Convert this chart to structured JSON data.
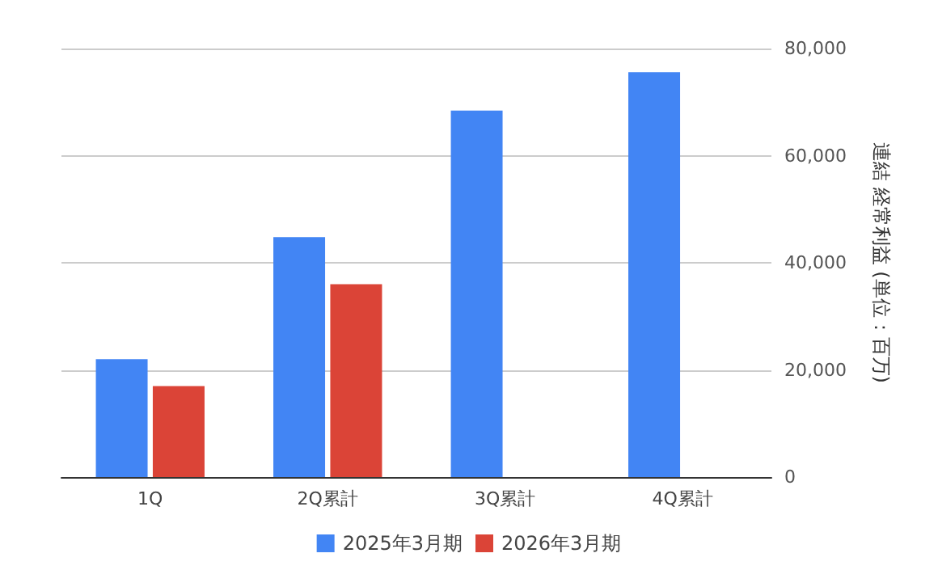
{
  "chart_data": {
    "type": "bar",
    "categories": [
      "1Q",
      "2Q累計",
      "3Q累計",
      "4Q累計"
    ],
    "series": [
      {
        "name": "2025年3月期",
        "color": "#4285f4",
        "values": [
          22000,
          44800,
          68400,
          75600
        ]
      },
      {
        "name": "2026年3月期",
        "color": "#db4437",
        "values": [
          17000,
          36000,
          null,
          null
        ]
      }
    ],
    "ylabel": "連結 経常利益 (単位：百万)",
    "ylim": [
      0,
      80000
    ],
    "yticks": [
      0,
      {
        "value": 20000,
        "label": "20,000"
      },
      {
        "value": 40000,
        "label": "40,000"
      },
      {
        "value": 60000,
        "label": "60,000"
      },
      {
        "value": 80000,
        "label": "80,000"
      }
    ],
    "grid": "y",
    "legend": "bottom"
  }
}
